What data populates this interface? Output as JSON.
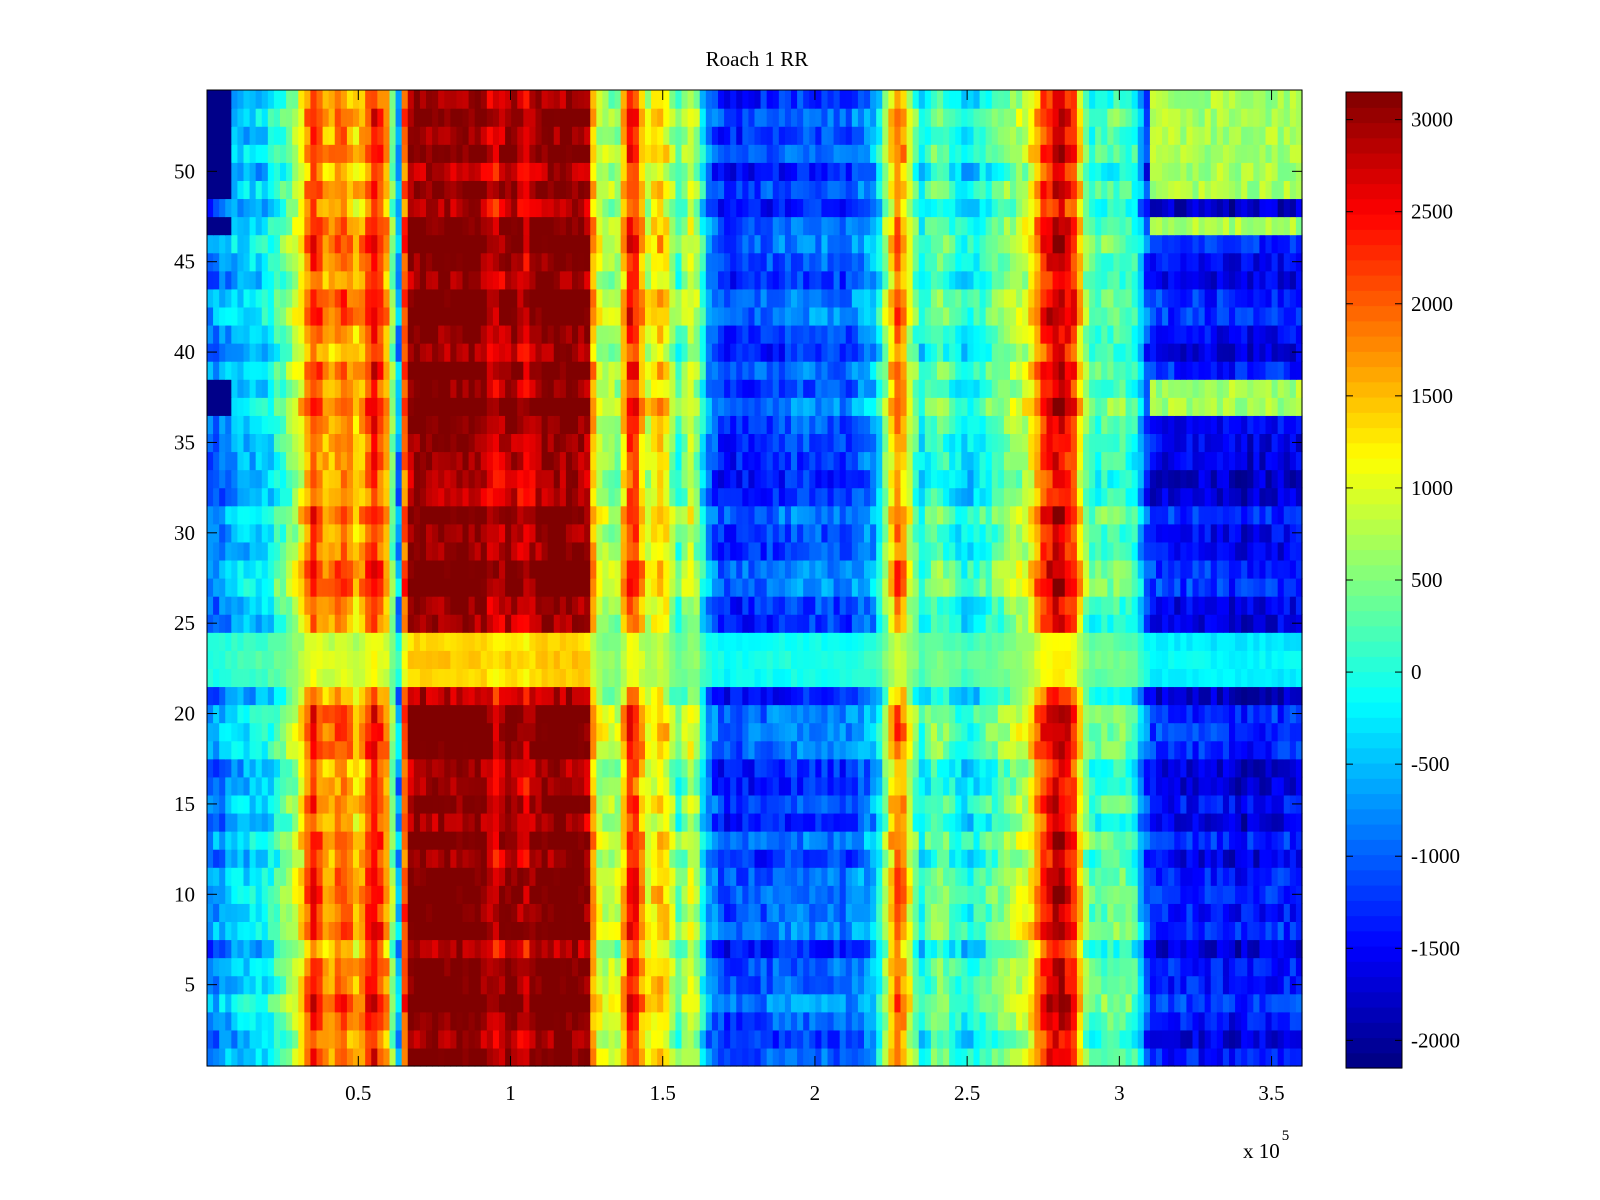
{
  "chart_data": {
    "type": "heatmap",
    "title": "Roach 1 RR",
    "xlabel": "",
    "ylabel": "",
    "x_multiplier_label": "x 10",
    "x_multiplier_exponent": "5",
    "xlim": [
      0.003,
      3.6
    ],
    "ylim": [
      0.5,
      54.5
    ],
    "x_scale": 100000,
    "x_ticks": [
      0.5,
      1,
      1.5,
      2,
      2.5,
      3,
      3.5
    ],
    "x_tick_labels": [
      "0.5",
      "1",
      "1.5",
      "2",
      "2.5",
      "3",
      "3.5"
    ],
    "y_ticks": [
      5,
      10,
      15,
      20,
      25,
      30,
      35,
      40,
      45,
      50
    ],
    "y_tick_labels": [
      "5",
      "10",
      "15",
      "20",
      "25",
      "30",
      "35",
      "40",
      "45",
      "50"
    ],
    "rows": 54,
    "clim": [
      -2150,
      3150
    ],
    "colormap": "jet",
    "colorbar_ticks": [
      3000,
      2500,
      2000,
      1500,
      1000,
      500,
      0,
      -500,
      -1000,
      -1500,
      -2000
    ],
    "colorbar_tick_labels": [
      "3000",
      "2500",
      "2000",
      "1500",
      "1000",
      "500",
      "0",
      "-500",
      "-1000",
      "-1500",
      "-2000"
    ],
    "column_profile_x": [
      0.0,
      0.1,
      0.2,
      0.3,
      0.35,
      0.4,
      0.45,
      0.5,
      0.55,
      0.6,
      0.63,
      0.66,
      0.7,
      0.8,
      0.9,
      0.95,
      1.0,
      1.05,
      1.1,
      1.2,
      1.25,
      1.28,
      1.3,
      1.35,
      1.4,
      1.45,
      1.5,
      1.55,
      1.6,
      1.65,
      1.7,
      1.8,
      1.9,
      2.0,
      2.1,
      2.2,
      2.25,
      2.28,
      2.3,
      2.35,
      2.4,
      2.5,
      2.6,
      2.7,
      2.75,
      2.8,
      2.85,
      2.9,
      3.0,
      3.05,
      3.1,
      3.2,
      3.3,
      3.4,
      3.5,
      3.6
    ],
    "column_profile_value": [
      -1000,
      -500,
      -300,
      800,
      2300,
      1500,
      2000,
      1300,
      2500,
      1500,
      -1000,
      3000,
      3150,
      3150,
      3150,
      2600,
      3150,
      2600,
      3150,
      3150,
      3100,
      1000,
      800,
      600,
      2600,
      900,
      1500,
      200,
      1000,
      -800,
      -1300,
      -1200,
      -1100,
      -1000,
      -1100,
      -600,
      1300,
      2100,
      1200,
      -200,
      400,
      -300,
      300,
      900,
      2200,
      2800,
      2200,
      100,
      300,
      0,
      -1400,
      -1500,
      -1500,
      -1600,
      -1500,
      -1500
    ],
    "notable_rows": {
      "light_rows": [
        21,
        22,
        23
      ],
      "dark_top_rows": [
        36,
        37,
        46,
        48,
        49,
        50,
        51,
        52,
        53
      ]
    }
  }
}
